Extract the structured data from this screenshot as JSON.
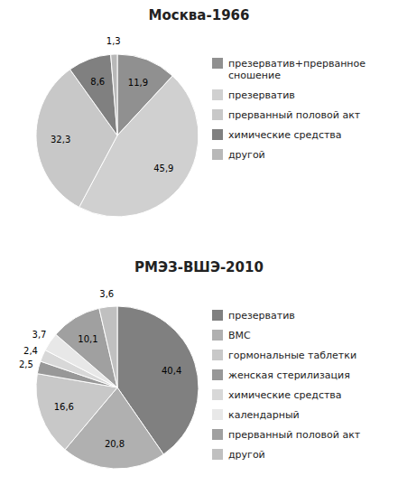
{
  "chart_data": [
    {
      "type": "pie",
      "title": "Москва-1966",
      "categories": [
        "презерватив+прерванное\nсношение",
        "презерватив",
        "прерванный половой акт",
        "химические средства",
        "другой"
      ],
      "values": [
        11.9,
        45.9,
        32.3,
        8.6,
        1.3
      ],
      "value_labels": [
        "11,9",
        "45,9",
        "32,3",
        "8,6",
        "1,3"
      ],
      "colors": [
        "#909090",
        "#d0d0d0",
        "#c8c8c8",
        "#808080",
        "#b8b8b8"
      ],
      "data_labels": true,
      "legend": "right"
    },
    {
      "type": "pie",
      "title": "РМЭЗ-ВШЭ-2010",
      "categories": [
        "презерватив",
        "ВМС",
        "гормональные таблетки",
        "женская стерилизация",
        "химические средства",
        "календарный",
        "прерванный половой акт",
        "другой"
      ],
      "values": [
        40.4,
        20.8,
        16.6,
        2.5,
        2.4,
        3.7,
        10.1,
        3.6
      ],
      "value_labels": [
        "40,4",
        "20,8",
        "16,6",
        "2,5",
        "2,4",
        "3,7",
        "10,1",
        "3,6"
      ],
      "colors": [
        "#808080",
        "#b0b0b0",
        "#c8c8c8",
        "#989898",
        "#d8d8d8",
        "#e8e8e8",
        "#a0a0a0",
        "#c0c0c0"
      ],
      "data_labels": true,
      "legend": "right"
    }
  ]
}
